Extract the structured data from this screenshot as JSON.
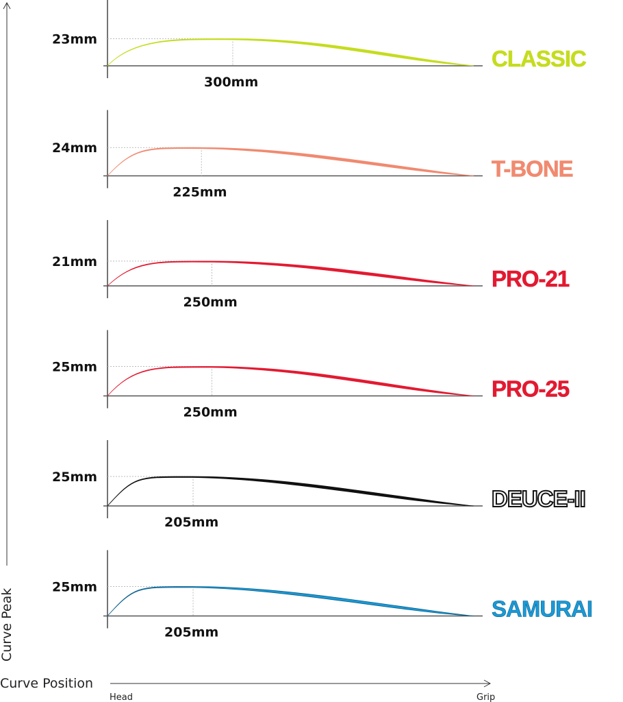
{
  "chart_data": {
    "type": "area",
    "y_axis_title": "Curve Peak",
    "x_axis_title": "Curve Position",
    "x_start_label": "Head",
    "x_end_label": "Grip",
    "series": [
      {
        "name": "CLASSIC",
        "peak_label": "23mm",
        "position_label": "300mm",
        "peak_mm": 23,
        "position_mm": 300,
        "color": "#c5dc1f",
        "stroke": "#c5dc1f"
      },
      {
        "name": "T-BONE",
        "peak_label": "24mm",
        "position_label": "225mm",
        "peak_mm": 24,
        "position_mm": 225,
        "color": "#f08a70",
        "stroke": "#f08a70"
      },
      {
        "name": "PRO-21",
        "peak_label": "21mm",
        "position_label": "250mm",
        "peak_mm": 21,
        "position_mm": 250,
        "color": "#e21a31",
        "stroke": "#e21a31"
      },
      {
        "name": "PRO-25",
        "peak_label": "25mm",
        "position_label": "250mm",
        "peak_mm": 25,
        "position_mm": 250,
        "color": "#e21a31",
        "stroke": "#e21a31"
      },
      {
        "name": "DEUCE-II",
        "peak_label": "25mm",
        "position_label": "205mm",
        "peak_mm": 25,
        "position_mm": 205,
        "color": "#ffffff",
        "stroke": "#111111"
      },
      {
        "name": "SAMURAI",
        "peak_label": "25mm",
        "position_label": "205mm",
        "peak_mm": 25,
        "position_mm": 205,
        "color": "#1a9ad6",
        "stroke": "#0d5f8c"
      }
    ]
  }
}
